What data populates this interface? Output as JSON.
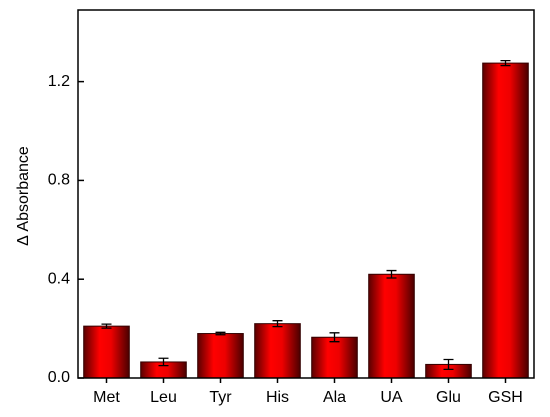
{
  "chart_data": {
    "type": "bar",
    "y_label": "Δ Absorbance",
    "categories": [
      "Met",
      "Leu",
      "Tyr",
      "His",
      "Ala",
      "UA",
      "Glu",
      "GSH"
    ],
    "values": [
      0.21,
      0.065,
      0.18,
      0.22,
      0.165,
      0.42,
      0.055,
      1.275
    ],
    "errors": [
      0.008,
      0.015,
      0.005,
      0.012,
      0.018,
      0.015,
      0.02,
      0.01
    ],
    "color": "#ff0000",
    "ylim": [
      0,
      1.49
    ],
    "yticks": [
      {
        "value": 0,
        "label": "0.0"
      },
      0.4,
      0.8,
      1.2
    ]
  }
}
